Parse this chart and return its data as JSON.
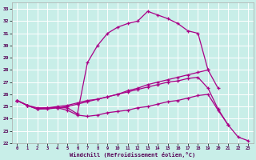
{
  "xlabel": "Windchill (Refroidissement éolien,°C)",
  "bg_color": "#c8eee8",
  "grid_color": "#ffffff",
  "line_color": "#aa0088",
  "xlim": [
    -0.5,
    23.5
  ],
  "ylim": [
    22,
    33.5
  ],
  "yticks": [
    22,
    23,
    24,
    25,
    26,
    27,
    28,
    29,
    30,
    31,
    32,
    33
  ],
  "xticks": [
    0,
    1,
    2,
    3,
    4,
    5,
    6,
    7,
    8,
    9,
    10,
    11,
    12,
    13,
    14,
    15,
    16,
    17,
    18,
    19,
    20,
    21,
    22,
    23
  ],
  "series": [
    {
      "x": [
        0,
        1,
        2,
        3,
        4,
        5,
        6,
        7,
        8,
        9,
        10,
        11,
        12,
        13,
        14,
        15,
        16,
        17,
        18,
        19,
        20,
        21,
        22,
        23
      ],
      "y": [
        25.5,
        25.1,
        24.8,
        24.9,
        24.9,
        24.9,
        24.4,
        28.6,
        30.0,
        31.0,
        31.5,
        31.8,
        32.0,
        32.8,
        32.5,
        32.2,
        31.8,
        31.2,
        31.0,
        28.0,
        null,
        null,
        null,
        null
      ]
    },
    {
      "x": [
        0,
        1,
        2,
        3,
        4,
        5,
        6,
        7,
        8,
        9,
        10,
        11,
        12,
        13,
        14,
        15,
        16,
        17,
        18,
        19,
        20,
        21,
        22,
        23
      ],
      "y": [
        25.5,
        25.1,
        24.8,
        24.9,
        24.9,
        25.0,
        25.2,
        25.4,
        25.6,
        25.8,
        26.0,
        26.3,
        26.5,
        26.8,
        27.0,
        27.2,
        27.4,
        27.6,
        27.8,
        28.0,
        26.5,
        null,
        null,
        null
      ]
    },
    {
      "x": [
        0,
        1,
        2,
        3,
        4,
        5,
        6,
        7,
        8,
        9,
        10,
        11,
        12,
        13,
        14,
        15,
        16,
        17,
        18,
        19,
        20,
        21,
        22,
        23
      ],
      "y": [
        25.5,
        25.1,
        24.9,
        24.9,
        25.0,
        25.1,
        25.3,
        25.5,
        25.6,
        25.8,
        26.0,
        26.2,
        26.4,
        26.6,
        26.8,
        27.0,
        27.1,
        27.3,
        27.4,
        26.5,
        24.8,
        23.5,
        null,
        null
      ]
    },
    {
      "x": [
        0,
        1,
        2,
        3,
        4,
        5,
        6,
        7,
        8,
        9,
        10,
        11,
        12,
        13,
        14,
        15,
        16,
        17,
        18,
        19,
        20,
        21,
        22,
        23
      ],
      "y": [
        25.5,
        25.1,
        24.8,
        24.8,
        24.9,
        24.7,
        24.3,
        24.2,
        24.3,
        24.5,
        24.6,
        24.7,
        24.9,
        25.0,
        25.2,
        25.4,
        25.5,
        25.7,
        25.9,
        26.0,
        24.7,
        23.5,
        22.5,
        22.2
      ]
    }
  ]
}
